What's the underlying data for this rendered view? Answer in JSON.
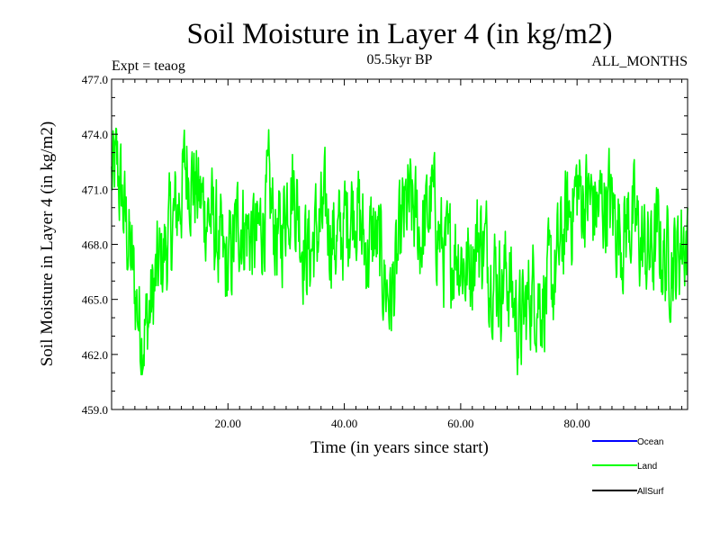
{
  "chart_data": {
    "type": "line",
    "title": "Soil Moisture in Layer 4 (in kg/m2)",
    "subtitle": "05.5kyr BP",
    "left_label": "Expt = teaog",
    "right_label": "ALL_MONTHS",
    "xlabel": "Time (in years since start)",
    "ylabel": "Soil Moisture in Layer 4 (in kg/m2)",
    "xlim": [
      0,
      99
    ],
    "ylim": [
      459,
      477
    ],
    "x_ticks": [
      20,
      40,
      60,
      80
    ],
    "x_tick_labels": [
      "20.00",
      "40.00",
      "60.00",
      "80.00"
    ],
    "y_ticks": [
      459,
      462,
      465,
      468,
      471,
      474,
      477
    ],
    "y_tick_labels": [
      "459.0",
      "462.0",
      "465.0",
      "468.0",
      "471.0",
      "474.0",
      "477.0"
    ],
    "legend": [
      {
        "name": "Ocean",
        "color": "#0000ff"
      },
      {
        "name": "Land",
        "color": "#00ff00"
      },
      {
        "name": "AllSurf",
        "color": "#000000"
      }
    ],
    "series": [
      {
        "name": "Land",
        "color": "#00ff00",
        "x": [
          0,
          1,
          2,
          3,
          4,
          5,
          6,
          7,
          8,
          9,
          10,
          11,
          12,
          13,
          14,
          15,
          16,
          17,
          18,
          19,
          20,
          21,
          22,
          23,
          24,
          25,
          26,
          27,
          28,
          29,
          30,
          31,
          32,
          33,
          34,
          35,
          36,
          37,
          38,
          39,
          40,
          41,
          42,
          43,
          44,
          45,
          46,
          47,
          48,
          49,
          50,
          51,
          52,
          53,
          54,
          55,
          56,
          57,
          58,
          59,
          60,
          61,
          62,
          63,
          64,
          65,
          66,
          67,
          68,
          69,
          70,
          71,
          72,
          73,
          74,
          75,
          76,
          77,
          78,
          79,
          80,
          81,
          82,
          83,
          84,
          85,
          86,
          87,
          88,
          89,
          90,
          91,
          92,
          93,
          94,
          95,
          96,
          97,
          98,
          99
        ],
        "mean": [
          471.5,
          472.0,
          470.0,
          468.0,
          465.5,
          463.5,
          463.5,
          465.0,
          466.5,
          467.5,
          468.5,
          469.5,
          471.0,
          472.5,
          471.5,
          470.5,
          470.0,
          469.5,
          468.5,
          467.0,
          466.5,
          468.0,
          469.5,
          469.0,
          468.5,
          468.0,
          469.5,
          470.5,
          469.0,
          468.0,
          470.5,
          471.5,
          470.0,
          468.0,
          467.5,
          468.5,
          469.0,
          469.5,
          468.5,
          468.0,
          469.0,
          470.0,
          470.5,
          468.5,
          467.5,
          468.5,
          467.5,
          466.0,
          465.0,
          466.5,
          469.0,
          470.0,
          469.5,
          468.5,
          469.0,
          470.5,
          469.0,
          467.5,
          467.0,
          468.0,
          467.5,
          466.5,
          467.5,
          468.5,
          468.0,
          467.0,
          466.5,
          466.0,
          466.5,
          465.0,
          463.5,
          464.0,
          465.5,
          465.5,
          465.0,
          465.5,
          466.0,
          467.5,
          469.0,
          470.0,
          471.0,
          470.5,
          470.5,
          470.0,
          470.0,
          470.5,
          470.0,
          469.0,
          468.5,
          469.5,
          469.0,
          468.0,
          467.5,
          467.5,
          468.5,
          467.0,
          467.5,
          467.0,
          468.5,
          468.0
        ],
        "y_min": 460.9,
        "y_max": 475.6
      }
    ]
  }
}
